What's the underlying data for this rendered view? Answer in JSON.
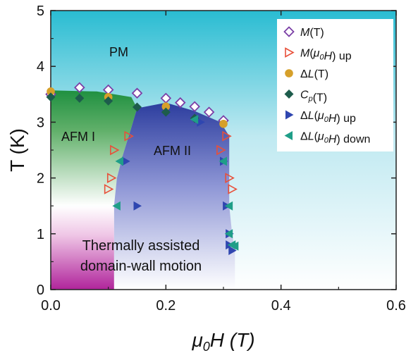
{
  "chart_data": {
    "type": "scatter",
    "title": "",
    "xlabel": {
      "sym": "μ",
      "sub": "0",
      "rest": "H (T)"
    },
    "ylabel": "T (K)",
    "xlim": [
      0,
      0.6
    ],
    "ylim": [
      0,
      5
    ],
    "x_ticks": [
      "0.0",
      "0.2",
      "0.4",
      "0.6"
    ],
    "y_ticks": [
      "0",
      "1",
      "2",
      "3",
      "4",
      "5"
    ],
    "grid": false,
    "legend_position": "top-right",
    "regions": {
      "pm": "PM",
      "afm1": "AFM I",
      "afm2": "AFM II",
      "domain_line1": "Thermally assisted",
      "domain_line2": "domain-wall motion"
    },
    "series": [
      {
        "name": "M(T)",
        "label_parts": [
          {
            "t": "M",
            "i": true
          },
          {
            "t": "(T)"
          }
        ],
        "marker": "diamond-open",
        "color": "#7b3fa6",
        "points": [
          [
            0.0,
            3.5
          ],
          [
            0.05,
            3.62
          ],
          [
            0.1,
            3.58
          ],
          [
            0.15,
            3.52
          ],
          [
            0.2,
            3.43
          ],
          [
            0.225,
            3.35
          ],
          [
            0.25,
            3.28
          ],
          [
            0.275,
            3.18
          ],
          [
            0.3,
            3.03
          ]
        ]
      },
      {
        "name": "M(μ0H) up",
        "label_parts": [
          {
            "t": "M",
            "i": true
          },
          {
            "t": "("
          },
          {
            "t": "μ",
            "i": true
          },
          {
            "t": "0",
            "i": true,
            "sub": true
          },
          {
            "t": "H",
            "i": true
          },
          {
            "t": ") up"
          }
        ],
        "marker": "triangle-right-open",
        "color": "#e8503a",
        "points": [
          [
            0.1,
            1.8
          ],
          [
            0.105,
            2.0
          ],
          [
            0.11,
            2.5
          ],
          [
            0.135,
            2.75
          ],
          [
            0.295,
            2.5
          ],
          [
            0.305,
            2.75
          ],
          [
            0.31,
            2.0
          ],
          [
            0.315,
            1.8
          ]
        ]
      },
      {
        "name": "ΔL(T)",
        "label_parts": [
          {
            "t": "Δ"
          },
          {
            "t": "L",
            "i": true
          },
          {
            "t": "(T)"
          }
        ],
        "marker": "circle",
        "color": "#d6a02a",
        "points": [
          [
            0.0,
            3.55
          ],
          [
            0.1,
            3.45
          ],
          [
            0.2,
            3.28
          ],
          [
            0.3,
            2.97
          ]
        ]
      },
      {
        "name": "Cp(T)",
        "label_parts": [
          {
            "t": "C",
            "i": true
          },
          {
            "t": "p",
            "i": true,
            "sub": true
          },
          {
            "t": "(T)"
          }
        ],
        "marker": "diamond",
        "color": "#1d5c4c",
        "points": [
          [
            0.0,
            3.45
          ],
          [
            0.05,
            3.43
          ],
          [
            0.1,
            3.38
          ],
          [
            0.15,
            3.27
          ],
          [
            0.2,
            3.18
          ],
          [
            0.25,
            3.07
          ]
        ]
      },
      {
        "name": "ΔL(μ0H) up",
        "label_parts": [
          {
            "t": "Δ"
          },
          {
            "t": "L",
            "i": true
          },
          {
            "t": "("
          },
          {
            "t": "μ",
            "i": true
          },
          {
            "t": "0",
            "i": true,
            "sub": true
          },
          {
            "t": "H",
            "i": true
          },
          {
            "t": ") up"
          }
        ],
        "marker": "triangle-right",
        "color": "#2f46b0",
        "points": [
          [
            0.13,
            2.3
          ],
          [
            0.15,
            1.5
          ],
          [
            0.26,
            3.0
          ],
          [
            0.3,
            2.3
          ],
          [
            0.305,
            1.5
          ],
          [
            0.31,
            1.0
          ],
          [
            0.31,
            0.8
          ],
          [
            0.315,
            0.7
          ]
        ]
      },
      {
        "name": "ΔL(μ0H) down",
        "label_parts": [
          {
            "t": "Δ"
          },
          {
            "t": "L",
            "i": true
          },
          {
            "t": "("
          },
          {
            "t": "μ",
            "i": true
          },
          {
            "t": "0",
            "i": true,
            "sub": true
          },
          {
            "t": "H",
            "i": true
          },
          {
            "t": ") down"
          }
        ],
        "marker": "triangle-left",
        "color": "#1f9e88",
        "points": [
          [
            0.12,
            2.3
          ],
          [
            0.115,
            1.5
          ],
          [
            0.25,
            3.05
          ],
          [
            0.3,
            2.3
          ],
          [
            0.31,
            1.5
          ],
          [
            0.31,
            1.0
          ],
          [
            0.315,
            0.8
          ],
          [
            0.32,
            0.78
          ]
        ]
      }
    ]
  }
}
